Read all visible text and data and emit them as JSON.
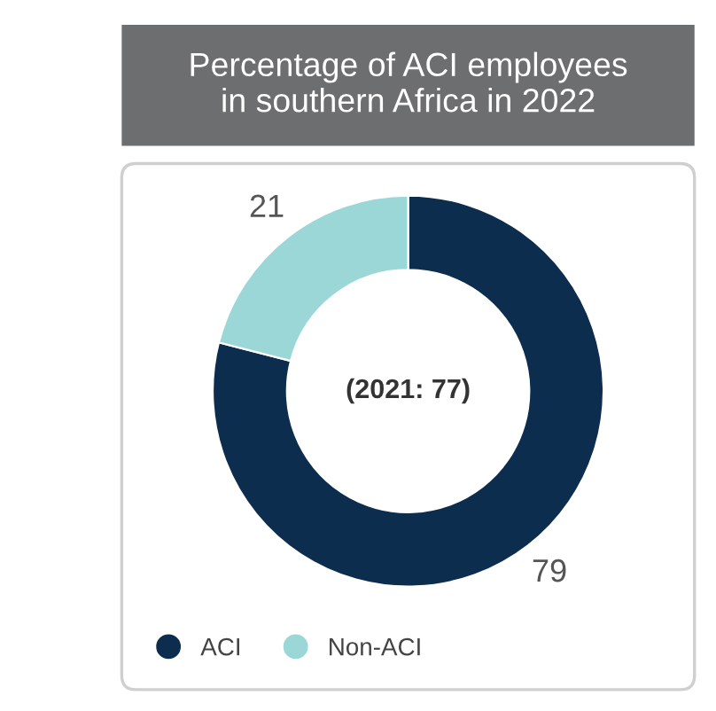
{
  "chart_data": {
    "type": "donut",
    "title": "Percentage of ACI employees\nin southern Africa in 2022",
    "categories": [
      "ACI",
      "Non-ACI"
    ],
    "values": [
      79,
      21
    ],
    "colors": [
      "#0d2d4e",
      "#9bd7d7"
    ],
    "data_labels": true,
    "annotations": [
      "(2021: 77)"
    ],
    "legend": "bottom left"
  }
}
